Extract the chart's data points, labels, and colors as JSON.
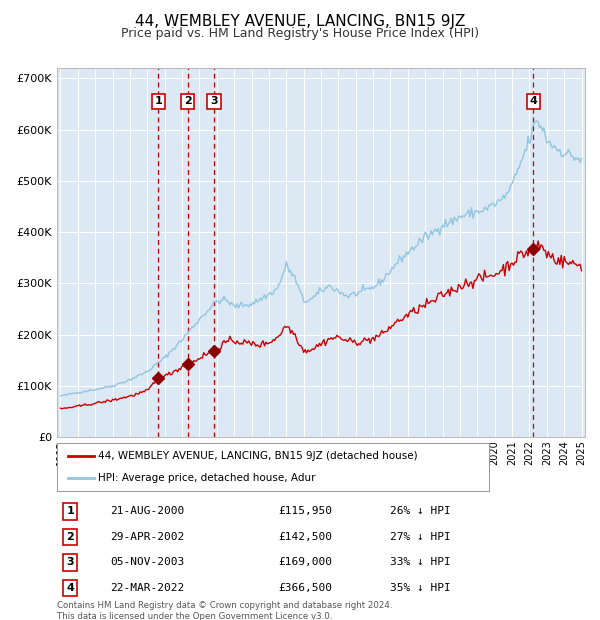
{
  "title": "44, WEMBLEY AVENUE, LANCING, BN15 9JZ",
  "subtitle": "Price paid vs. HM Land Registry's House Price Index (HPI)",
  "title_fontsize": 11,
  "subtitle_fontsize": 9,
  "background_color": "#dce9f5",
  "ylim": [
    0,
    720000
  ],
  "yticks": [
    0,
    100000,
    200000,
    300000,
    400000,
    500000,
    600000,
    700000
  ],
  "year_start": 1995,
  "year_end": 2025,
  "hpi_color": "#92c5e0",
  "price_color": "#cc0000",
  "sale_marker_color": "#8b0000",
  "dashed_line_color": "#cc0000",
  "legend_label_price": "44, WEMBLEY AVENUE, LANCING, BN15 9JZ (detached house)",
  "legend_label_hpi": "HPI: Average price, detached house, Adur",
  "transactions": [
    {
      "id": 1,
      "date": "21-AUG-2000",
      "year": 2000.64,
      "price": 115950,
      "pct": "26%",
      "dir": "↓"
    },
    {
      "id": 2,
      "date": "29-APR-2002",
      "year": 2002.33,
      "price": 142500,
      "pct": "27%",
      "dir": "↓"
    },
    {
      "id": 3,
      "date": "05-NOV-2003",
      "year": 2003.84,
      "price": 169000,
      "pct": "33%",
      "dir": "↓"
    },
    {
      "id": 4,
      "date": "22-MAR-2022",
      "year": 2022.22,
      "price": 366500,
      "pct": "35%",
      "dir": "↓"
    }
  ],
  "footer": "Contains HM Land Registry data © Crown copyright and database right 2024.\nThis data is licensed under the Open Government Licence v3.0."
}
